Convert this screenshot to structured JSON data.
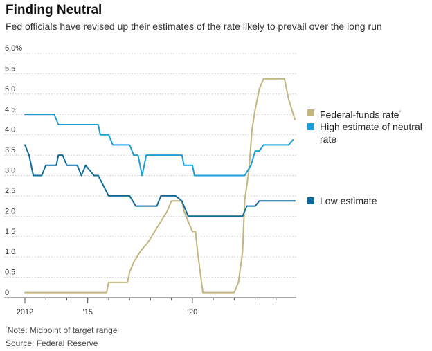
{
  "header": {
    "title": "Finding Neutral",
    "subtitle": "Fed officials have revised up their estimates of the rate likely to prevail over the long run"
  },
  "legend": {
    "fedfunds_label": "Federal-funds rate",
    "fedfunds_marker": "*",
    "high_label": "High estimate of neutral rate",
    "low_label": "Low estimate"
  },
  "footer": {
    "note_marker": "*",
    "note": "Note: Midpoint of target range",
    "source": "Source: Federal Reserve"
  },
  "chart_data": {
    "type": "line",
    "ylim": [
      0,
      6.0
    ],
    "xlim": [
      2012,
      2024.9
    ],
    "y_ticks": [
      {
        "value": 0,
        "label": "0"
      },
      {
        "value": 0.5,
        "label": "0.5"
      },
      {
        "value": 1.0,
        "label": "1.0"
      },
      {
        "value": 1.5,
        "label": "1.5"
      },
      {
        "value": 2.0,
        "label": "2.0"
      },
      {
        "value": 2.5,
        "label": "2.5"
      },
      {
        "value": 3.0,
        "label": "3.0"
      },
      {
        "value": 3.5,
        "label": "3.5"
      },
      {
        "value": 4.0,
        "label": "4.0"
      },
      {
        "value": 4.5,
        "label": "4.5"
      },
      {
        "value": 5.0,
        "label": "5.0"
      },
      {
        "value": 5.5,
        "label": "5.5"
      },
      {
        "value": 6.0,
        "label": "6.0%"
      }
    ],
    "x_ticks": [
      {
        "value": 2012,
        "label": "2012"
      },
      {
        "value": 2015,
        "label": "’15"
      },
      {
        "value": 2020,
        "label": "’20"
      }
    ],
    "grid": "horizontal",
    "legend_position": "right",
    "colors": {
      "fedfunds": "#c2b57d",
      "high": "#1a9ed9",
      "low": "#0f6a9a"
    },
    "series": [
      {
        "name": "Federal-funds rate",
        "key": "fedfunds",
        "x": [
          2012.0,
          2015.9,
          2016.0,
          2016.9,
          2017.0,
          2017.2,
          2017.5,
          2017.9,
          2018.2,
          2018.5,
          2018.8,
          2019.0,
          2019.5,
          2019.6,
          2019.8,
          2020.0,
          2020.15,
          2020.25,
          2020.5,
          2022.0,
          2022.2,
          2022.4,
          2022.5,
          2022.7,
          2022.85,
          2023.0,
          2023.2,
          2023.4,
          2023.6,
          2024.4,
          2024.6,
          2024.9
        ],
        "y": [
          0.125,
          0.125,
          0.375,
          0.375,
          0.625,
          0.875,
          1.125,
          1.375,
          1.625,
          1.875,
          2.125,
          2.375,
          2.375,
          2.125,
          1.875,
          1.625,
          1.625,
          1.125,
          0.125,
          0.125,
          0.375,
          1.125,
          2.375,
          3.125,
          4.125,
          4.625,
          5.125,
          5.375,
          5.375,
          5.375,
          4.875,
          4.375
        ]
      },
      {
        "name": "High estimate of neutral rate",
        "key": "high",
        "x": [
          2012.0,
          2013.4,
          2013.6,
          2015.5,
          2015.6,
          2016.0,
          2016.2,
          2017.0,
          2017.2,
          2017.4,
          2017.6,
          2017.8,
          2018.0,
          2019.5,
          2019.6,
          2020.0,
          2020.1,
          2022.5,
          2022.8,
          2023.0,
          2023.2,
          2023.4,
          2023.6,
          2024.6,
          2024.8
        ],
        "y": [
          4.5,
          4.5,
          4.25,
          4.25,
          4.0,
          4.0,
          3.75,
          3.75,
          3.5,
          3.5,
          3.0,
          3.5,
          3.5,
          3.5,
          3.25,
          3.25,
          3.0,
          3.0,
          3.25,
          3.6,
          3.6,
          3.75,
          3.75,
          3.75,
          3.875
        ]
      },
      {
        "name": "Low estimate",
        "key": "low",
        "x": [
          2012.0,
          2012.2,
          2012.4,
          2012.8,
          2013.0,
          2013.5,
          2013.6,
          2013.8,
          2014.0,
          2014.5,
          2014.7,
          2014.9,
          2015.3,
          2015.5,
          2016.0,
          2016.5,
          2017.0,
          2017.3,
          2017.6,
          2018.3,
          2018.5,
          2019.0,
          2019.2,
          2019.5,
          2019.8,
          2022.4,
          2022.6,
          2023.0,
          2023.2,
          2024.9
        ],
        "y": [
          3.75,
          3.5,
          3.0,
          3.0,
          3.25,
          3.25,
          3.5,
          3.5,
          3.25,
          3.25,
          3.0,
          3.25,
          3.0,
          3.0,
          2.5,
          2.5,
          2.5,
          2.25,
          2.25,
          2.25,
          2.5,
          2.5,
          2.5,
          2.375,
          2.0,
          2.0,
          2.25,
          2.25,
          2.375,
          2.375
        ]
      }
    ]
  }
}
